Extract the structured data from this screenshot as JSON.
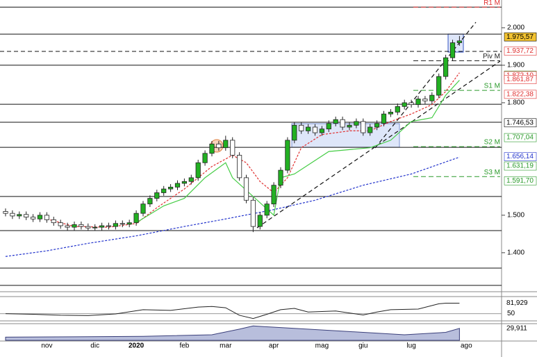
{
  "chart_data": {
    "type": "candlestick",
    "categories": [
      null,
      null,
      null,
      null,
      null,
      null,
      "nov",
      null,
      null,
      null,
      null,
      null,
      null,
      "dic",
      null,
      null,
      null,
      null,
      null,
      "2020",
      null,
      null,
      null,
      null,
      null,
      null,
      "feb",
      null,
      null,
      null,
      null,
      null,
      "mar",
      null,
      null,
      null,
      null,
      null,
      null,
      "apr",
      null,
      null,
      null,
      null,
      null,
      null,
      "mag",
      null,
      null,
      null,
      null,
      null,
      "giu",
      null,
      null,
      null,
      null,
      null,
      null,
      "lug",
      null,
      null,
      null,
      null,
      null,
      null,
      null,
      "ago"
    ],
    "open": [
      1510,
      1505,
      1498,
      1502,
      1495,
      1490,
      1500,
      1488,
      1480,
      1472,
      1468,
      1475,
      1470,
      1466,
      1468,
      1472,
      1470,
      1478,
      1476,
      1480,
      1505,
      1530,
      1545,
      1560,
      1570,
      1575,
      1585,
      1590,
      1600,
      1640,
      1665,
      1690,
      1680,
      1700,
      1660,
      1600,
      1540,
      1470,
      1500,
      1530,
      1580,
      1620,
      1700,
      1740,
      1725,
      1735,
      1720,
      1730,
      1745,
      1755,
      1735,
      1740,
      1750,
      1720,
      1735,
      1745,
      1770,
      1775,
      1790,
      1800,
      1795,
      1810,
      1805,
      1820,
      1870,
      1920,
      1960,
      null
    ],
    "high": [
      1518,
      1513,
      1510,
      1510,
      1503,
      1508,
      1508,
      1496,
      1488,
      1480,
      1483,
      1483,
      1478,
      1476,
      1480,
      1480,
      1486,
      1486,
      1488,
      1513,
      1538,
      1553,
      1568,
      1578,
      1583,
      1593,
      1598,
      1608,
      1648,
      1673,
      1698,
      1698,
      1712,
      1708,
      1668,
      1608,
      1548,
      1508,
      1538,
      1588,
      1628,
      1708,
      1748,
      1748,
      1743,
      1743,
      1738,
      1753,
      1763,
      1763,
      1748,
      1758,
      1758,
      1743,
      1753,
      1778,
      1783,
      1798,
      1808,
      1808,
      1818,
      1818,
      1828,
      1878,
      1928,
      1968,
      1978,
      null
    ],
    "low": [
      1497,
      1490,
      1490,
      1487,
      1482,
      1482,
      1480,
      1472,
      1464,
      1460,
      1460,
      1462,
      1458,
      1458,
      1460,
      1462,
      1462,
      1468,
      1468,
      1472,
      1497,
      1522,
      1537,
      1552,
      1562,
      1567,
      1577,
      1582,
      1592,
      1632,
      1657,
      1672,
      1672,
      1652,
      1592,
      1532,
      1455,
      1462,
      1492,
      1522,
      1572,
      1612,
      1692,
      1717,
      1717,
      1712,
      1712,
      1722,
      1737,
      1727,
      1727,
      1732,
      1712,
      1712,
      1727,
      1737,
      1762,
      1767,
      1782,
      1787,
      1787,
      1797,
      1797,
      1812,
      1862,
      1912,
      1952,
      null
    ],
    "close": [
      1505,
      1498,
      1502,
      1495,
      1490,
      1500,
      1488,
      1480,
      1472,
      1468,
      1475,
      1470,
      1466,
      1468,
      1472,
      1470,
      1478,
      1476,
      1480,
      1505,
      1530,
      1545,
      1560,
      1570,
      1575,
      1585,
      1590,
      1600,
      1640,
      1665,
      1690,
      1680,
      1700,
      1660,
      1600,
      1540,
      1470,
      1500,
      1530,
      1580,
      1620,
      1700,
      1740,
      1725,
      1735,
      1720,
      1730,
      1745,
      1755,
      1735,
      1740,
      1750,
      1720,
      1735,
      1745,
      1770,
      1775,
      1790,
      1800,
      1795,
      1810,
      1805,
      1820,
      1870,
      1920,
      1960,
      1965,
      null
    ],
    "up_color": "#22b022",
    "down_color": "#ffffff",
    "wick_color": "#222222",
    "ylim": [
      1296,
      2074
    ],
    "yticks": [
      {
        "value": 2000,
        "label": "2.000"
      },
      {
        "value": 1900,
        "label": "1.900"
      },
      {
        "value": 1800,
        "label": "1.800"
      },
      {
        "value": 1500,
        "label": "1.500"
      },
      {
        "value": 1400,
        "label": "1.400"
      }
    ],
    "levels": [
      2055,
      1983,
      1900,
      1796,
      1748,
      1681,
      1550,
      1459,
      1359,
      1313
    ],
    "dashed_levels": [
      1937
    ],
    "overlays": [
      {
        "color": "#2233cc",
        "x": [
          0,
          6,
          12,
          19,
          26,
          32,
          39,
          45,
          52,
          59,
          66
        ],
        "values": [
          1390,
          1405,
          1425,
          1445,
          1470,
          1490,
          1515,
          1540,
          1580,
          1610,
          1655
        ]
      },
      {
        "color": "#e03030",
        "x": [
          6,
          10,
          15,
          19,
          22,
          26,
          30,
          33,
          35,
          37,
          39,
          41,
          43,
          46,
          50,
          53,
          56,
          59,
          62,
          64,
          66
        ],
        "values": [
          1490,
          1470,
          1468,
          1478,
          1520,
          1570,
          1630,
          1660,
          1640,
          1590,
          1560,
          1600,
          1680,
          1715,
          1725,
          1725,
          1750,
          1770,
          1795,
          1830,
          1880
        ]
      },
      {
        "color": "#44cc44",
        "x": [
          19,
          23,
          26,
          29,
          32,
          33,
          39,
          40,
          42,
          47,
          53,
          56,
          59,
          62,
          64,
          66
        ],
        "values": [
          1480,
          1525,
          1545,
          1600,
          1640,
          1600,
          1500,
          1600,
          1610,
          1670,
          1680,
          1700,
          1750,
          1760,
          1820,
          1860
        ]
      }
    ],
    "pivots": [
      {
        "label": "R1 M",
        "value": 2055,
        "color": "#e03030"
      },
      {
        "label": "Piv M",
        "value": 1912,
        "color": "#222222"
      },
      {
        "label": "S1 M",
        "value": 1833,
        "color": "#2a9a2a"
      },
      {
        "label": "S2 M",
        "value": 1683,
        "color": "#2a9a2a"
      },
      {
        "label": "S3 M",
        "value": 1603,
        "color": "#2a9a2a"
      }
    ],
    "price_labels": [
      {
        "value": 1975.57,
        "label": "1.975,57",
        "color": "#000000",
        "background": "#f2c230"
      },
      {
        "value": 1937.72,
        "label": "1.937,72",
        "color": "#e03030",
        "background": "#ffffff"
      },
      {
        "value": 1873.59,
        "label": "1.873,59",
        "color": "#2a9a2a",
        "background": "#ffffff"
      },
      {
        "value": 1872.1,
        "label": "1.872,10",
        "color": "#e03030",
        "background": "#ffffff"
      },
      {
        "value": 1861.87,
        "label": "1.861,87",
        "color": "#e03030",
        "background": "#ffffff"
      },
      {
        "value": 1822.38,
        "label": "1.822,38",
        "color": "#e03030",
        "background": "#ffffff"
      },
      {
        "value": 1746.53,
        "label": "1.746,53",
        "color": "#000000",
        "background": "#ffffff"
      },
      {
        "value": 1707.04,
        "label": "1.707,04",
        "color": "#2a9a2a",
        "background": "#ffffff"
      },
      {
        "value": 1656.14,
        "label": "1.656,14",
        "color": "#2233cc",
        "background": "#ffffff"
      },
      {
        "value": 1631.19,
        "label": "1.631,19",
        "color": "#2a9a2a",
        "background": "#ffffff"
      },
      {
        "value": 1591.7,
        "label": "1.591,70",
        "color": "#2a9a2a",
        "background": "#ffffff"
      }
    ],
    "rsi": {
      "ylim": [
        30,
        100
      ],
      "yticks": [
        50
      ],
      "last": {
        "value": 81.929,
        "label": "81,929"
      },
      "x": [
        0,
        4,
        8,
        12,
        16,
        20,
        24,
        28,
        30,
        32,
        34,
        36,
        38,
        40,
        42,
        44,
        48,
        52,
        54,
        56,
        60,
        63,
        64,
        66
      ],
      "values": [
        50,
        48,
        45,
        44,
        49,
        62,
        60,
        70,
        72,
        68,
        45,
        35,
        48,
        62,
        66,
        55,
        58,
        46,
        55,
        62,
        64,
        80,
        82,
        82
      ]
    },
    "volume": {
      "ylim": [
        0,
        40
      ],
      "last": {
        "value": 29.911,
        "label": "29,911"
      },
      "x": [
        0,
        10,
        20,
        30,
        34,
        36,
        38,
        42,
        50,
        58,
        64,
        66
      ],
      "values": [
        8,
        9,
        10,
        14,
        28,
        36,
        34,
        30,
        22,
        14,
        20,
        30
      ]
    }
  }
}
